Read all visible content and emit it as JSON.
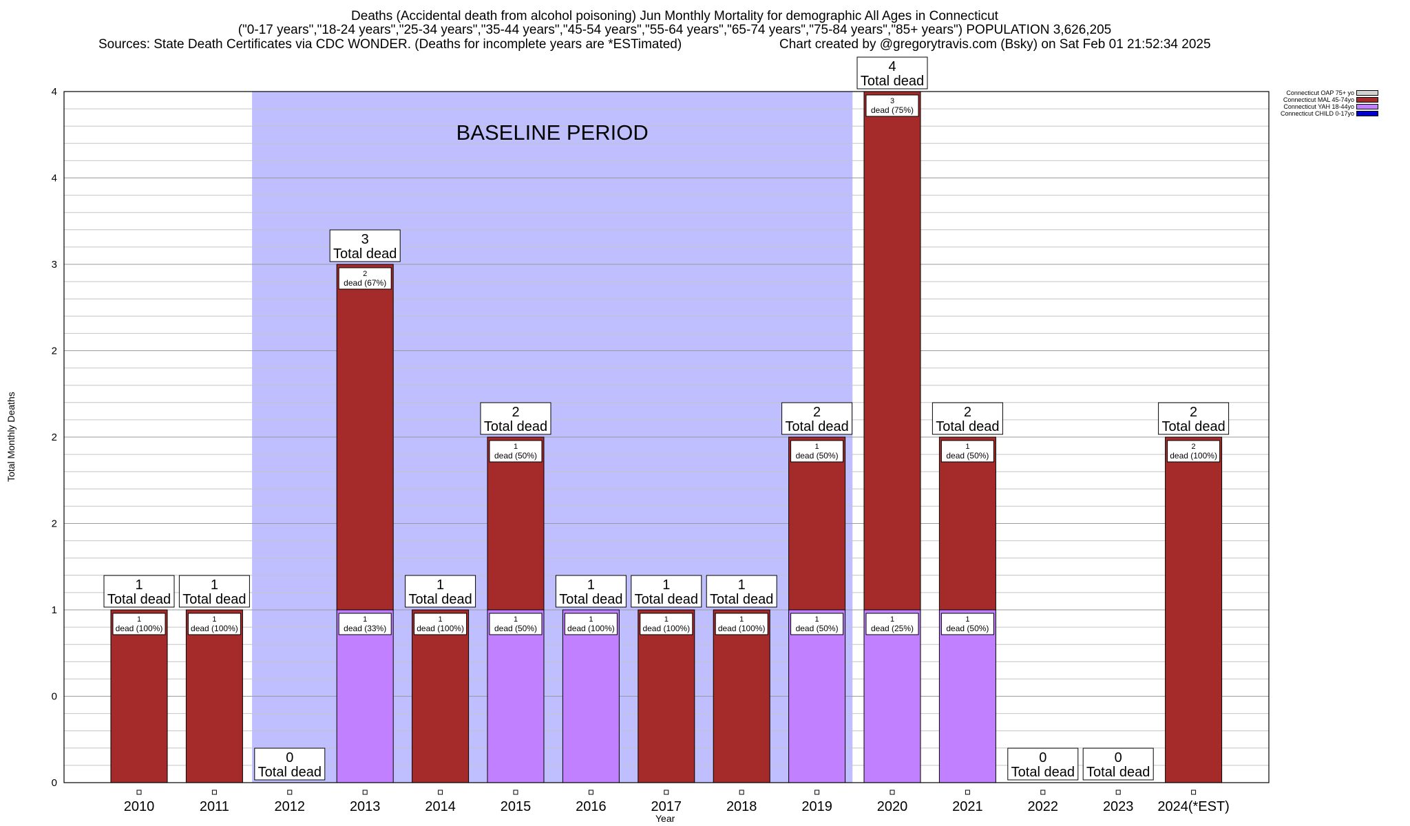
{
  "header": {
    "line1": "Deaths (Accidental death from alcohol poisoning) Jun Monthly Mortality for demographic All Ages in Connecticut",
    "line2": "(\"0-17 years\",\"18-24 years\",\"25-34 years\",\"35-44 years\",\"45-54 years\",\"55-64 years\",\"65-74 years\",\"75-84 years\",\"85+ years\") POPULATION 3,626,205",
    "line3_left": "Sources: State Death Certificates via CDC WONDER. (Deaths for incomplete years are *ESTimated)",
    "line3_right": "Chart created by @gregorytravis.com (Bsky) on Sat Feb 01 21:52:34 2025"
  },
  "chart_data": {
    "type": "bar",
    "stacked": true,
    "xlabel": "Year",
    "ylabel": "Total Monthly Deaths",
    "ylim": [
      0,
      4
    ],
    "y_tick_labels": [
      "0",
      "0",
      "1",
      "2",
      "2",
      "2",
      "3",
      "4",
      "4"
    ],
    "categories": [
      "2010",
      "2011",
      "2012",
      "2013",
      "2014",
      "2015",
      "2016",
      "2017",
      "2018",
      "2019",
      "2020",
      "2021",
      "2022",
      "2023",
      "2024(*EST)"
    ],
    "baseline": {
      "label": "BASELINE PERIOD",
      "from": "2012",
      "to": "2019"
    },
    "series": [
      {
        "name": "Connecticut CHILD 0-17yo",
        "color": "#0000c8",
        "values": [
          0,
          0,
          0,
          0,
          0,
          0,
          0,
          0,
          0,
          0,
          0,
          0,
          0,
          0,
          0
        ]
      },
      {
        "name": "Connecticut YAH 18-44yo",
        "color": "#c080ff",
        "values": [
          0,
          0,
          0,
          1,
          0,
          1,
          1,
          0,
          0,
          1,
          1,
          1,
          0,
          0,
          0
        ]
      },
      {
        "name": "Connecticut MAL 45-74yo",
        "color": "#a52a2a",
        "values": [
          1,
          1,
          0,
          2,
          1,
          1,
          0,
          1,
          1,
          1,
          3,
          1,
          0,
          0,
          2
        ]
      },
      {
        "name": "Connecticut OAP 75+ yo",
        "color": "#d3d3d3",
        "values": [
          0,
          0,
          0,
          0,
          0,
          0,
          0,
          0,
          0,
          0,
          0,
          0,
          0,
          0,
          0
        ]
      }
    ],
    "totals": [
      1,
      1,
      0,
      3,
      1,
      2,
      1,
      1,
      1,
      2,
      4,
      2,
      0,
      0,
      2
    ],
    "total_label": "Total dead",
    "segment_labels": [
      [
        {
          "at": 1,
          "count": "1",
          "pct": "dead (100%)"
        }
      ],
      [
        {
          "at": 1,
          "count": "1",
          "pct": "dead (100%)"
        }
      ],
      [],
      [
        {
          "at": 1,
          "count": "1",
          "pct": "dead (33%)"
        },
        {
          "at": 3,
          "count": "2",
          "pct": "dead (67%)"
        }
      ],
      [
        {
          "at": 1,
          "count": "1",
          "pct": "dead (100%)"
        }
      ],
      [
        {
          "at": 1,
          "count": "1",
          "pct": "dead (50%)"
        },
        {
          "at": 2,
          "count": "1",
          "pct": "dead (50%)"
        }
      ],
      [
        {
          "at": 1,
          "count": "1",
          "pct": "dead (100%)"
        }
      ],
      [
        {
          "at": 1,
          "count": "1",
          "pct": "dead (100%)"
        }
      ],
      [
        {
          "at": 1,
          "count": "1",
          "pct": "dead (100%)"
        }
      ],
      [
        {
          "at": 1,
          "count": "1",
          "pct": "dead (50%)"
        },
        {
          "at": 2,
          "count": "1",
          "pct": "dead (50%)"
        }
      ],
      [
        {
          "at": 1,
          "count": "1",
          "pct": "dead (25%)"
        },
        {
          "at": 4,
          "count": "3",
          "pct": "dead (75%)"
        }
      ],
      [
        {
          "at": 1,
          "count": "1",
          "pct": "dead (50%)"
        },
        {
          "at": 2,
          "count": "1",
          "pct": "dead (50%)"
        }
      ],
      [],
      [],
      [
        {
          "at": 2,
          "count": "2",
          "pct": "dead (100%)"
        }
      ]
    ],
    "grid": true,
    "legend_position": "top-right"
  },
  "legend": {
    "items": [
      {
        "label": "Connecticut OAP 75+ yo",
        "color": "#d3d3d3"
      },
      {
        "label": "Connecticut MAL 45-74yo",
        "color": "#a52a2a"
      },
      {
        "label": "Connecticut YAH 18-44yo",
        "color": "#c080ff"
      },
      {
        "label": "Connecticut CHILD 0-17yo",
        "color": "#0000c8"
      }
    ]
  }
}
